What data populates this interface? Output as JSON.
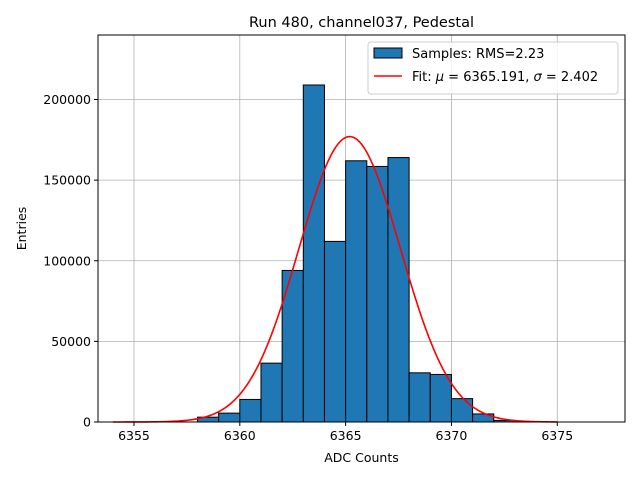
{
  "chart_data": {
    "type": "bar",
    "title": "Run 480, channel037, Pedestal",
    "xlabel": "ADC Counts",
    "ylabel": "Entries",
    "xlim": [
      6353.3,
      6378.2
    ],
    "ylim": [
      0,
      240000
    ],
    "grid": true,
    "legend_position": "top-right",
    "xticks": [
      6355,
      6360,
      6365,
      6370,
      6375
    ],
    "yticks": [
      0,
      50000,
      100000,
      150000,
      200000
    ],
    "bin_width": 1,
    "bins": [
      {
        "x0": 6358,
        "value": 3000
      },
      {
        "x0": 6359,
        "value": 5500
      },
      {
        "x0": 6360,
        "value": 14000
      },
      {
        "x0": 6361,
        "value": 36500
      },
      {
        "x0": 6362,
        "value": 94000
      },
      {
        "x0": 6363,
        "value": 209000
      },
      {
        "x0": 6364,
        "value": 112000
      },
      {
        "x0": 6365,
        "value": 162000
      },
      {
        "x0": 6366,
        "value": 158500
      },
      {
        "x0": 6367,
        "value": 164000
      },
      {
        "x0": 6368,
        "value": 30500
      },
      {
        "x0": 6369,
        "value": 29500
      },
      {
        "x0": 6370,
        "value": 14500
      },
      {
        "x0": 6371,
        "value": 5000
      },
      {
        "x0": 6372,
        "value": 1000
      }
    ],
    "fit": {
      "mu": 6365.191,
      "sigma": 2.402,
      "amplitude": 177000,
      "x_range": [
        6354,
        6375
      ]
    },
    "legend": [
      {
        "label": "Samples: RMS=2.23"
      },
      {
        "label_prefix": "Fit: ",
        "mu_symbol": "μ",
        "mu_text": " = 6365.191, ",
        "sigma_symbol": "σ",
        "sigma_text": " = 2.402"
      }
    ],
    "colors": {
      "bar_fill": "#1f77b4",
      "bar_edge": "#000000",
      "fit_line": "#ff0000",
      "grid": "#b0b0b0"
    }
  }
}
